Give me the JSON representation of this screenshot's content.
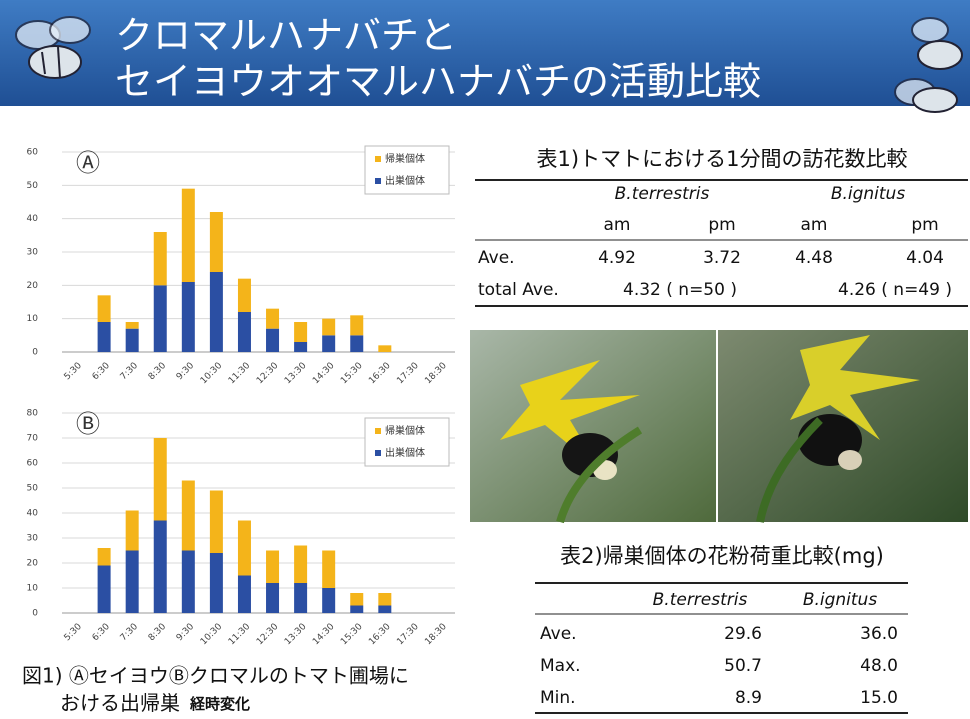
{
  "header": {
    "title_lines": [
      "クロマルハナバチと",
      "セイヨウオオマルハナバチの活動比較"
    ]
  },
  "chart_data": [
    {
      "type": "bar",
      "stacked": true,
      "panel_label": "Ⓐ",
      "categories": [
        "5:30",
        "6:30",
        "7:30",
        "8:30",
        "9:30",
        "10:30",
        "11:30",
        "12:30",
        "13:30",
        "14:30",
        "15:30",
        "16:30",
        "17:30",
        "18:30"
      ],
      "series": [
        {
          "name": "出巣個体",
          "color": "#2b4fa3",
          "values": [
            0,
            9,
            7,
            20,
            21,
            24,
            12,
            7,
            3,
            5,
            5,
            0,
            0,
            0
          ]
        },
        {
          "name": "帰巣個体",
          "color": "#f4b41a",
          "values": [
            0,
            8,
            2,
            16,
            28,
            18,
            10,
            6,
            6,
            5,
            6,
            2,
            0,
            0
          ]
        }
      ],
      "ylim": [
        0,
        60
      ],
      "yticks": [
        0,
        10,
        20,
        30,
        40,
        50,
        60
      ],
      "grid": true,
      "legend": "upper right"
    },
    {
      "type": "bar",
      "stacked": true,
      "panel_label": "Ⓑ",
      "categories": [
        "5:30",
        "6:30",
        "7:30",
        "8:30",
        "9:30",
        "10:30",
        "11:30",
        "12:30",
        "13:30",
        "14:30",
        "15:30",
        "16:30",
        "17:30",
        "18:30"
      ],
      "series": [
        {
          "name": "出巣個体",
          "color": "#2b4fa3",
          "values": [
            0,
            19,
            25,
            37,
            25,
            24,
            15,
            12,
            12,
            10,
            3,
            3,
            0,
            0
          ]
        },
        {
          "name": "帰巣個体",
          "color": "#f4b41a",
          "values": [
            0,
            7,
            16,
            33,
            28,
            25,
            22,
            13,
            15,
            15,
            5,
            5,
            0,
            0
          ]
        }
      ],
      "ylim": [
        0,
        80
      ],
      "yticks": [
        0,
        10,
        20,
        30,
        40,
        50,
        60,
        70,
        80
      ],
      "grid": true,
      "legend": "upper right"
    }
  ],
  "caption": {
    "line1": "図1) ⒶセイヨウⒷクロマルのトマト圃場に",
    "line2": "おける出帰巣",
    "line2_bold": "経時変化"
  },
  "table1": {
    "title": "表1)トマトにおける1分間の訪花数比較",
    "species": [
      "B.terrestris",
      "B.ignitus"
    ],
    "periods": [
      "am",
      "pm",
      "am",
      "pm"
    ],
    "rows": [
      [
        "Ave.",
        "4.92",
        "3.72",
        "4.48",
        "4.04"
      ],
      [
        "total Ave.",
        "4.32 ( n=50 )",
        "4.26 ( n=49 )"
      ]
    ]
  },
  "table2": {
    "title": "表2)帰巣個体の花粉荷重比較(mg)",
    "columns": [
      "B.terrestris",
      "B.ignitus"
    ],
    "rows": [
      [
        "Ave.",
        "29.6",
        "36.0"
      ],
      [
        "Max.",
        "50.7",
        "48.0"
      ],
      [
        "Min.",
        "8.9",
        "15.0"
      ]
    ]
  }
}
